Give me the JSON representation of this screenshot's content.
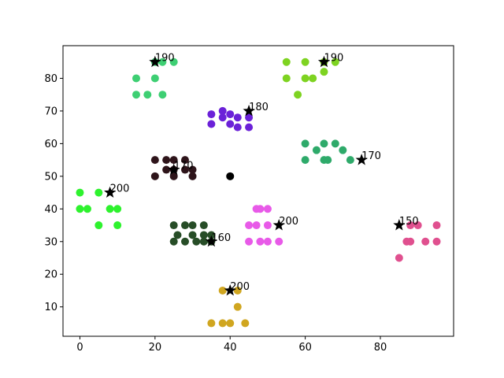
{
  "chart_data": {
    "type": "scatter",
    "title": "",
    "xlabel": "",
    "ylabel": "",
    "xlim": [
      -4.5,
      99.5
    ],
    "ylim": [
      1,
      90
    ],
    "xticks": [
      0,
      20,
      40,
      60,
      80
    ],
    "yticks": [
      10,
      20,
      30,
      40,
      50,
      60,
      70,
      80
    ],
    "grid": false,
    "clusters": [
      {
        "color": "#3ecf73",
        "points": [
          [
            20,
            85
          ],
          [
            22,
            85
          ],
          [
            25,
            85
          ],
          [
            15,
            80
          ],
          [
            20,
            80
          ],
          [
            15,
            75
          ],
          [
            18,
            75
          ],
          [
            22,
            75
          ]
        ],
        "center": [
          20,
          85
        ],
        "label": "190"
      },
      {
        "color": "#7ed321",
        "points": [
          [
            55,
            85
          ],
          [
            60,
            85
          ],
          [
            65,
            85
          ],
          [
            68,
            85
          ],
          [
            55,
            80
          ],
          [
            60,
            80
          ],
          [
            62,
            80
          ],
          [
            65,
            82
          ],
          [
            58,
            75
          ]
        ],
        "center": [
          65,
          85
        ],
        "label": "190"
      },
      {
        "color": "#6b21d8",
        "points": [
          [
            35,
            69
          ],
          [
            38,
            70
          ],
          [
            40,
            69
          ],
          [
            42,
            68
          ],
          [
            45,
            68
          ],
          [
            35,
            66
          ],
          [
            38,
            68
          ],
          [
            40,
            66
          ],
          [
            42,
            65
          ],
          [
            45,
            65
          ]
        ],
        "center": [
          45,
          70
        ],
        "label": "180"
      },
      {
        "color": "#2eaa6a",
        "points": [
          [
            60,
            60
          ],
          [
            65,
            60
          ],
          [
            68,
            60
          ],
          [
            63,
            58
          ],
          [
            70,
            58
          ],
          [
            60,
            55
          ],
          [
            65,
            55
          ],
          [
            66,
            55
          ],
          [
            72,
            55
          ]
        ],
        "center": [
          75,
          55
        ],
        "label": "170"
      },
      {
        "color": "#2e141a",
        "points": [
          [
            20,
            55
          ],
          [
            23,
            55
          ],
          [
            25,
            55
          ],
          [
            28,
            55
          ],
          [
            23,
            52
          ],
          [
            25,
            52
          ],
          [
            28,
            52
          ],
          [
            30,
            52
          ],
          [
            20,
            50
          ],
          [
            25,
            50
          ],
          [
            30,
            50
          ]
        ],
        "center": [
          25,
          52
        ],
        "label": "170"
      },
      {
        "color": "#000000",
        "points": [
          [
            40,
            50
          ]
        ],
        "center": null,
        "label": ""
      },
      {
        "color": "#2ef22e",
        "points": [
          [
            0,
            45
          ],
          [
            5,
            45
          ],
          [
            0,
            40
          ],
          [
            2,
            40
          ],
          [
            8,
            40
          ],
          [
            10,
            40
          ],
          [
            5,
            35
          ],
          [
            10,
            35
          ]
        ],
        "center": [
          8,
          45
        ],
        "label": "200"
      },
      {
        "color": "#e85ae8",
        "points": [
          [
            47,
            40
          ],
          [
            48,
            40
          ],
          [
            50,
            40
          ],
          [
            45,
            35
          ],
          [
            47,
            35
          ],
          [
            50,
            35
          ],
          [
            45,
            30
          ],
          [
            48,
            30
          ],
          [
            50,
            30
          ],
          [
            53,
            30
          ]
        ],
        "center": [
          53,
          35
        ],
        "label": "200"
      },
      {
        "color": "#274d27",
        "points": [
          [
            25,
            35
          ],
          [
            28,
            35
          ],
          [
            30,
            35
          ],
          [
            33,
            35
          ],
          [
            26,
            32
          ],
          [
            30,
            32
          ],
          [
            33,
            32
          ],
          [
            35,
            32
          ],
          [
            25,
            30
          ],
          [
            28,
            30
          ],
          [
            31,
            30
          ],
          [
            33,
            30
          ],
          [
            35,
            30
          ]
        ],
        "center": [
          35,
          30
        ],
        "label": "160"
      },
      {
        "color": "#e0508f",
        "points": [
          [
            88,
            35
          ],
          [
            90,
            35
          ],
          [
            95,
            35
          ],
          [
            87,
            30
          ],
          [
            88,
            30
          ],
          [
            92,
            30
          ],
          [
            95,
            30
          ],
          [
            85,
            25
          ]
        ],
        "center": [
          85,
          35
        ],
        "label": "150"
      },
      {
        "color": "#d0a620",
        "points": [
          [
            38,
            15
          ],
          [
            42,
            15
          ],
          [
            42,
            10
          ],
          [
            35,
            5
          ],
          [
            38,
            5
          ],
          [
            40,
            5
          ],
          [
            44,
            5
          ]
        ],
        "center": [
          40,
          15
        ],
        "label": "200"
      }
    ]
  }
}
